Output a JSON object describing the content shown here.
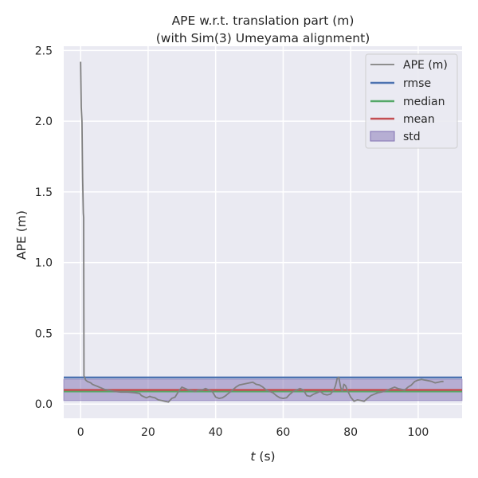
{
  "chart_data": {
    "type": "line",
    "title_line1": "APE w.r.t. translation part (m)",
    "title_line2": "(with Sim(3) Umeyama alignment)",
    "xlabel_var": "t",
    "xlabel_unit": " (s)",
    "ylabel": "APE (m)",
    "xlim": [
      -5,
      113
    ],
    "ylim": [
      -0.1,
      2.53
    ],
    "xticks": [
      0,
      20,
      40,
      60,
      80,
      100
    ],
    "yticks": [
      0.0,
      0.5,
      1.0,
      1.5,
      2.0,
      2.5
    ],
    "ytick_labels": [
      "0.0",
      "0.5",
      "1.0",
      "1.5",
      "2.0",
      "2.5"
    ],
    "xtick_labels": [
      "0",
      "20",
      "40",
      "60",
      "80",
      "100"
    ],
    "grid": true,
    "legend_position": "top-right",
    "stats": {
      "rmse": 0.188,
      "median": 0.09,
      "mean": 0.1,
      "std_band": [
        0.025,
        0.175
      ]
    },
    "series": [
      {
        "name": "APE (m)",
        "color": "#808080",
        "x": [
          0.0,
          0.2,
          0.4,
          0.6,
          0.8,
          0.9,
          1.0,
          1.5,
          2.0,
          2.5,
          3.0,
          3.5,
          4.0,
          4.5,
          5.0,
          5.5,
          6.0,
          6.5,
          7.0,
          8.0,
          10.0,
          12.0,
          14.0,
          16.0,
          17.5,
          18.0,
          18.5,
          19.0,
          19.5,
          20.0,
          20.5,
          21.0,
          22.0,
          23.0,
          24.0,
          25.0,
          26.0,
          27.0,
          28.0,
          29.0,
          30.0,
          30.5,
          31.0,
          32.0,
          33.0,
          34.0,
          35.0,
          36.0,
          37.0,
          38.0,
          39.0,
          40.0,
          41.0,
          42.0,
          43.0,
          44.0,
          45.0,
          46.0,
          47.0,
          48.0,
          49.0,
          50.0,
          51.0,
          52.0,
          53.0,
          54.0,
          55.0,
          56.0,
          57.0,
          58.0,
          59.0,
          60.0,
          61.0,
          62.0,
          63.0,
          64.0,
          65.0,
          66.0,
          67.0,
          68.0,
          69.0,
          70.0,
          71.0,
          72.0,
          73.0,
          74.0,
          75.0,
          75.5,
          76.0,
          76.5,
          77.0,
          77.5,
          78.0,
          78.5,
          79.0,
          80.0,
          81.0,
          82.0,
          83.0,
          84.0,
          85.0,
          86.0,
          87.0,
          88.0,
          89.0,
          90.0,
          91.0,
          92.0,
          93.0,
          94.0,
          95.0,
          96.0,
          97.0,
          98.0,
          99.0,
          100.0,
          101.0,
          102.0,
          103.0,
          104.0,
          105.0,
          106.0,
          107.0,
          107.5
        ],
        "y": [
          2.42,
          2.1,
          2.0,
          1.6,
          1.35,
          1.32,
          0.2,
          0.17,
          0.16,
          0.155,
          0.15,
          0.14,
          0.135,
          0.13,
          0.125,
          0.12,
          0.115,
          0.11,
          0.105,
          0.1,
          0.09,
          0.085,
          0.085,
          0.08,
          0.075,
          0.06,
          0.055,
          0.05,
          0.045,
          0.05,
          0.055,
          0.05,
          0.045,
          0.03,
          0.025,
          0.02,
          0.015,
          0.04,
          0.05,
          0.09,
          0.12,
          0.115,
          0.11,
          0.1,
          0.095,
          0.09,
          0.1,
          0.1,
          0.11,
          0.1,
          0.09,
          0.05,
          0.04,
          0.045,
          0.06,
          0.08,
          0.1,
          0.12,
          0.135,
          0.14,
          0.145,
          0.15,
          0.155,
          0.14,
          0.135,
          0.12,
          0.1,
          0.09,
          0.08,
          0.06,
          0.045,
          0.04,
          0.045,
          0.07,
          0.09,
          0.1,
          0.11,
          0.1,
          0.06,
          0.055,
          0.07,
          0.08,
          0.09,
          0.07,
          0.065,
          0.07,
          0.1,
          0.13,
          0.18,
          0.19,
          0.12,
          0.09,
          0.14,
          0.13,
          0.1,
          0.05,
          0.02,
          0.03,
          0.025,
          0.02,
          0.04,
          0.06,
          0.07,
          0.08,
          0.085,
          0.09,
          0.1,
          0.11,
          0.12,
          0.11,
          0.105,
          0.1,
          0.12,
          0.135,
          0.16,
          0.17,
          0.175,
          0.17,
          0.165,
          0.16,
          0.15,
          0.155,
          0.16,
          0.16
        ]
      },
      {
        "name": "rmse",
        "color": "#4c72b0"
      },
      {
        "name": "median",
        "color": "#55a868"
      },
      {
        "name": "mean",
        "color": "#c44e52"
      },
      {
        "name": "std",
        "color": "#8172b3"
      }
    ]
  }
}
